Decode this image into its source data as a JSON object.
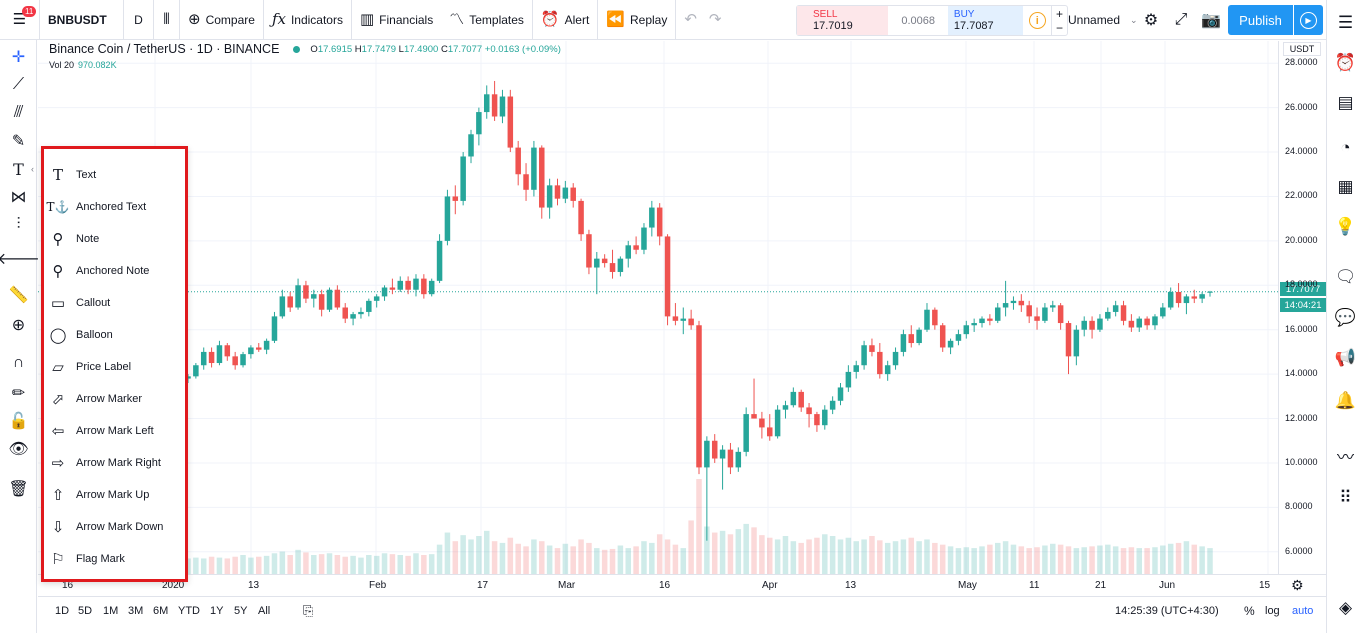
{
  "topbar": {
    "notification_count": "11",
    "symbol": "BNBUSDT",
    "interval": "D",
    "compare": "Compare",
    "indicators": "Indicators",
    "financials": "Financials",
    "templates": "Templates",
    "alert": "Alert",
    "replay": "Replay",
    "sell_label": "SELL",
    "sell_value": "17.7019",
    "spread": "0.0068",
    "buy_label": "BUY",
    "buy_value": "17.7087",
    "layout_name": "Unnamed",
    "publish": "Publish"
  },
  "legend": {
    "title": "Binance Coin / TetherUS · 1D · BINANCE",
    "o_label": "O",
    "o": "17.6915",
    "h_label": "H",
    "h": "17.7479",
    "l_label": "L",
    "l": "17.4900",
    "c_label": "C",
    "c": "17.7077",
    "change": "+0.0163 (+0.09%)",
    "vol_label": "Vol 20",
    "vol_value": "970.082K"
  },
  "price_scale": {
    "currency": "USDT",
    "ticks": [
      "28.0000",
      "26.0000",
      "24.0000",
      "22.0000",
      "20.0000",
      "18.0000",
      "16.0000",
      "14.0000",
      "12.0000",
      "10.0000",
      "8.0000",
      "6.0000"
    ],
    "last_price": "17.7077",
    "countdown": "14:04:21"
  },
  "time_scale": {
    "labels": [
      "16",
      "2020",
      "13",
      "Feb",
      "17",
      "Mar",
      "16",
      "Apr",
      "13",
      "May",
      "11",
      "21",
      "Jun",
      "15"
    ]
  },
  "bottombar": {
    "ranges": [
      "1D",
      "5D",
      "1M",
      "3M",
      "6M",
      "YTD",
      "1Y",
      "5Y",
      "All"
    ],
    "clock": "14:25:39 (UTC+4:30)",
    "percent": "%",
    "log": "log",
    "auto": "auto"
  },
  "annotation_menu": {
    "items": [
      {
        "label": "Text",
        "icon": "text-icon"
      },
      {
        "label": "Anchored Text",
        "icon": "anchored-text-icon"
      },
      {
        "label": "Note",
        "icon": "note-icon"
      },
      {
        "label": "Anchored Note",
        "icon": "anchored-note-icon"
      },
      {
        "label": "Callout",
        "icon": "callout-icon"
      },
      {
        "label": "Balloon",
        "icon": "balloon-icon"
      },
      {
        "label": "Price Label",
        "icon": "price-label-icon"
      },
      {
        "label": "Arrow Marker",
        "icon": "arrow-marker-icon"
      },
      {
        "label": "Arrow Mark Left",
        "icon": "arrow-left-icon"
      },
      {
        "label": "Arrow Mark Right",
        "icon": "arrow-right-icon"
      },
      {
        "label": "Arrow Mark Up",
        "icon": "arrow-up-icon"
      },
      {
        "label": "Arrow Mark Down",
        "icon": "arrow-down-icon"
      },
      {
        "label": "Flag Mark",
        "icon": "flag-icon"
      }
    ]
  },
  "colors": {
    "up": "#26a69a",
    "down": "#ef5350",
    "accent": "#2196f3",
    "highlight_border": "#e0191d"
  },
  "chart_data": {
    "type": "candlestick",
    "ylim": [
      5,
      29
    ],
    "price_line": 17.7077,
    "candles": [
      {
        "o": 13.8,
        "h": 14.0,
        "l": 13.6,
        "c": 13.9
      },
      {
        "o": 13.9,
        "h": 14.5,
        "l": 13.8,
        "c": 14.4
      },
      {
        "o": 14.4,
        "h": 15.2,
        "l": 14.2,
        "c": 15.0
      },
      {
        "o": 15.0,
        "h": 15.2,
        "l": 14.3,
        "c": 14.5
      },
      {
        "o": 14.5,
        "h": 15.5,
        "l": 14.4,
        "c": 15.3
      },
      {
        "o": 15.3,
        "h": 15.4,
        "l": 14.6,
        "c": 14.8
      },
      {
        "o": 14.8,
        "h": 15.0,
        "l": 14.2,
        "c": 14.4
      },
      {
        "o": 14.4,
        "h": 15.0,
        "l": 14.3,
        "c": 14.9
      },
      {
        "o": 14.9,
        "h": 15.3,
        "l": 14.7,
        "c": 15.2
      },
      {
        "o": 15.2,
        "h": 15.4,
        "l": 15.0,
        "c": 15.1
      },
      {
        "o": 15.1,
        "h": 15.6,
        "l": 14.9,
        "c": 15.5
      },
      {
        "o": 15.5,
        "h": 16.8,
        "l": 15.4,
        "c": 16.6
      },
      {
        "o": 16.6,
        "h": 17.8,
        "l": 16.5,
        "c": 17.5
      },
      {
        "o": 17.5,
        "h": 17.7,
        "l": 16.8,
        "c": 17.0
      },
      {
        "o": 17.0,
        "h": 18.3,
        "l": 16.9,
        "c": 18.0
      },
      {
        "o": 18.0,
        "h": 18.2,
        "l": 17.2,
        "c": 17.4
      },
      {
        "o": 17.4,
        "h": 17.8,
        "l": 17.0,
        "c": 17.6
      },
      {
        "o": 17.6,
        "h": 17.8,
        "l": 16.6,
        "c": 16.9
      },
      {
        "o": 16.9,
        "h": 17.9,
        "l": 16.8,
        "c": 17.8
      },
      {
        "o": 17.8,
        "h": 18.0,
        "l": 16.9,
        "c": 17.0
      },
      {
        "o": 17.0,
        "h": 17.2,
        "l": 16.3,
        "c": 16.5
      },
      {
        "o": 16.5,
        "h": 16.8,
        "l": 16.2,
        "c": 16.7
      },
      {
        "o": 16.7,
        "h": 17.0,
        "l": 16.5,
        "c": 16.8
      },
      {
        "o": 16.8,
        "h": 17.4,
        "l": 16.6,
        "c": 17.3
      },
      {
        "o": 17.3,
        "h": 17.6,
        "l": 17.0,
        "c": 17.5
      },
      {
        "o": 17.5,
        "h": 18.0,
        "l": 17.3,
        "c": 17.9
      },
      {
        "o": 17.9,
        "h": 18.3,
        "l": 17.6,
        "c": 17.8
      },
      {
        "o": 17.8,
        "h": 18.4,
        "l": 17.7,
        "c": 18.2
      },
      {
        "o": 18.2,
        "h": 18.4,
        "l": 17.6,
        "c": 17.8
      },
      {
        "o": 17.8,
        "h": 18.5,
        "l": 17.5,
        "c": 18.3
      },
      {
        "o": 18.3,
        "h": 18.5,
        "l": 17.4,
        "c": 17.6
      },
      {
        "o": 17.6,
        "h": 18.3,
        "l": 17.5,
        "c": 18.2
      },
      {
        "o": 18.2,
        "h": 20.3,
        "l": 18.1,
        "c": 20.0
      },
      {
        "o": 20.0,
        "h": 22.3,
        "l": 19.8,
        "c": 22.0
      },
      {
        "o": 22.0,
        "h": 22.5,
        "l": 21.2,
        "c": 21.8
      },
      {
        "o": 21.8,
        "h": 24.0,
        "l": 21.6,
        "c": 23.8
      },
      {
        "o": 23.8,
        "h": 25.0,
        "l": 23.5,
        "c": 24.8
      },
      {
        "o": 24.8,
        "h": 26.0,
        "l": 24.3,
        "c": 25.8
      },
      {
        "o": 25.8,
        "h": 27.0,
        "l": 25.5,
        "c": 26.6
      },
      {
        "o": 26.6,
        "h": 27.2,
        "l": 25.4,
        "c": 25.6
      },
      {
        "o": 25.6,
        "h": 26.8,
        "l": 25.3,
        "c": 26.5
      },
      {
        "o": 26.5,
        "h": 26.8,
        "l": 24.0,
        "c": 24.2
      },
      {
        "o": 24.2,
        "h": 24.5,
        "l": 22.5,
        "c": 23.0
      },
      {
        "o": 23.0,
        "h": 23.5,
        "l": 21.8,
        "c": 22.3
      },
      {
        "o": 22.3,
        "h": 24.5,
        "l": 22.0,
        "c": 24.2
      },
      {
        "o": 24.2,
        "h": 24.3,
        "l": 21.0,
        "c": 21.5
      },
      {
        "o": 21.5,
        "h": 22.8,
        "l": 21.0,
        "c": 22.5
      },
      {
        "o": 22.5,
        "h": 22.8,
        "l": 21.6,
        "c": 21.9
      },
      {
        "o": 21.9,
        "h": 22.7,
        "l": 21.7,
        "c": 22.4
      },
      {
        "o": 22.4,
        "h": 22.6,
        "l": 21.5,
        "c": 21.8
      },
      {
        "o": 21.8,
        "h": 21.9,
        "l": 20.0,
        "c": 20.3
      },
      {
        "o": 20.3,
        "h": 20.5,
        "l": 18.5,
        "c": 18.8
      },
      {
        "o": 18.8,
        "h": 19.5,
        "l": 17.6,
        "c": 19.2
      },
      {
        "o": 19.2,
        "h": 19.4,
        "l": 18.8,
        "c": 19.0
      },
      {
        "o": 19.0,
        "h": 19.6,
        "l": 18.3,
        "c": 18.6
      },
      {
        "o": 18.6,
        "h": 19.3,
        "l": 18.4,
        "c": 19.2
      },
      {
        "o": 19.2,
        "h": 20.0,
        "l": 18.8,
        "c": 19.8
      },
      {
        "o": 19.8,
        "h": 20.2,
        "l": 19.4,
        "c": 19.6
      },
      {
        "o": 19.6,
        "h": 20.8,
        "l": 19.4,
        "c": 20.6
      },
      {
        "o": 20.6,
        "h": 21.8,
        "l": 20.2,
        "c": 21.5
      },
      {
        "o": 21.5,
        "h": 21.7,
        "l": 19.8,
        "c": 20.2
      },
      {
        "o": 20.2,
        "h": 20.3,
        "l": 16.2,
        "c": 16.6
      },
      {
        "o": 16.6,
        "h": 17.2,
        "l": 16.2,
        "c": 16.4
      },
      {
        "o": 16.4,
        "h": 17.0,
        "l": 15.8,
        "c": 16.5
      },
      {
        "o": 16.5,
        "h": 16.9,
        "l": 16.0,
        "c": 16.2
      },
      {
        "o": 16.2,
        "h": 16.4,
        "l": 9.5,
        "c": 9.8
      },
      {
        "o": 9.8,
        "h": 11.2,
        "l": 6.5,
        "c": 11.0
      },
      {
        "o": 11.0,
        "h": 11.3,
        "l": 10.0,
        "c": 10.2
      },
      {
        "o": 10.2,
        "h": 10.8,
        "l": 8.8,
        "c": 10.6
      },
      {
        "o": 10.6,
        "h": 10.9,
        "l": 9.5,
        "c": 9.8
      },
      {
        "o": 9.8,
        "h": 10.7,
        "l": 9.6,
        "c": 10.5
      },
      {
        "o": 10.5,
        "h": 12.5,
        "l": 10.3,
        "c": 12.2
      },
      {
        "o": 12.2,
        "h": 13.8,
        "l": 12.0,
        "c": 12.0
      },
      {
        "o": 12.0,
        "h": 12.3,
        "l": 11.1,
        "c": 11.6
      },
      {
        "o": 11.6,
        "h": 12.2,
        "l": 11.0,
        "c": 11.2
      },
      {
        "o": 11.2,
        "h": 12.6,
        "l": 11.1,
        "c": 12.4
      },
      {
        "o": 12.4,
        "h": 12.8,
        "l": 12.0,
        "c": 12.6
      },
      {
        "o": 12.6,
        "h": 13.4,
        "l": 12.5,
        "c": 13.2
      },
      {
        "o": 13.2,
        "h": 13.3,
        "l": 12.3,
        "c": 12.5
      },
      {
        "o": 12.5,
        "h": 12.7,
        "l": 11.6,
        "c": 12.2
      },
      {
        "o": 12.2,
        "h": 12.3,
        "l": 11.4,
        "c": 11.7
      },
      {
        "o": 11.7,
        "h": 12.6,
        "l": 11.5,
        "c": 12.4
      },
      {
        "o": 12.4,
        "h": 13.0,
        "l": 12.2,
        "c": 12.8
      },
      {
        "o": 12.8,
        "h": 13.6,
        "l": 12.6,
        "c": 13.4
      },
      {
        "o": 13.4,
        "h": 14.4,
        "l": 13.2,
        "c": 14.1
      },
      {
        "o": 14.1,
        "h": 14.6,
        "l": 13.8,
        "c": 14.4
      },
      {
        "o": 14.4,
        "h": 15.5,
        "l": 14.2,
        "c": 15.3
      },
      {
        "o": 15.3,
        "h": 15.6,
        "l": 14.8,
        "c": 15.0
      },
      {
        "o": 15.0,
        "h": 15.4,
        "l": 13.8,
        "c": 14.0
      },
      {
        "o": 14.0,
        "h": 14.6,
        "l": 13.7,
        "c": 14.4
      },
      {
        "o": 14.4,
        "h": 15.2,
        "l": 14.2,
        "c": 15.0
      },
      {
        "o": 15.0,
        "h": 16.0,
        "l": 14.8,
        "c": 15.8
      },
      {
        "o": 15.8,
        "h": 16.2,
        "l": 15.2,
        "c": 15.4
      },
      {
        "o": 15.4,
        "h": 16.1,
        "l": 15.3,
        "c": 16.0
      },
      {
        "o": 16.0,
        "h": 17.2,
        "l": 15.9,
        "c": 16.9
      },
      {
        "o": 16.9,
        "h": 17.0,
        "l": 16.0,
        "c": 16.2
      },
      {
        "o": 16.2,
        "h": 16.3,
        "l": 15.0,
        "c": 15.2
      },
      {
        "o": 15.2,
        "h": 15.6,
        "l": 14.9,
        "c": 15.5
      },
      {
        "o": 15.5,
        "h": 16.0,
        "l": 15.3,
        "c": 15.8
      },
      {
        "o": 15.8,
        "h": 16.4,
        "l": 15.6,
        "c": 16.2
      },
      {
        "o": 16.2,
        "h": 16.5,
        "l": 15.9,
        "c": 16.3
      },
      {
        "o": 16.3,
        "h": 16.6,
        "l": 16.1,
        "c": 16.5
      },
      {
        "o": 16.5,
        "h": 16.7,
        "l": 16.2,
        "c": 16.4
      },
      {
        "o": 16.4,
        "h": 17.2,
        "l": 16.3,
        "c": 17.0
      },
      {
        "o": 17.0,
        "h": 18.2,
        "l": 16.6,
        "c": 17.2
      },
      {
        "o": 17.2,
        "h": 17.5,
        "l": 16.9,
        "c": 17.3
      },
      {
        "o": 17.3,
        "h": 17.6,
        "l": 16.8,
        "c": 17.1
      },
      {
        "o": 17.1,
        "h": 17.3,
        "l": 16.3,
        "c": 16.6
      },
      {
        "o": 16.6,
        "h": 17.0,
        "l": 16.0,
        "c": 16.4
      },
      {
        "o": 16.4,
        "h": 17.2,
        "l": 16.3,
        "c": 17.0
      },
      {
        "o": 17.0,
        "h": 17.3,
        "l": 16.8,
        "c": 17.1
      },
      {
        "o": 17.1,
        "h": 17.2,
        "l": 16.0,
        "c": 16.3
      },
      {
        "o": 16.3,
        "h": 16.4,
        "l": 14.0,
        "c": 14.8
      },
      {
        "o": 14.8,
        "h": 16.2,
        "l": 14.4,
        "c": 16.0
      },
      {
        "o": 16.0,
        "h": 16.6,
        "l": 15.7,
        "c": 16.4
      },
      {
        "o": 16.4,
        "h": 16.6,
        "l": 15.6,
        "c": 16.0
      },
      {
        "o": 16.0,
        "h": 16.7,
        "l": 15.9,
        "c": 16.5
      },
      {
        "o": 16.5,
        "h": 17.0,
        "l": 16.4,
        "c": 16.8
      },
      {
        "o": 16.8,
        "h": 17.3,
        "l": 16.6,
        "c": 17.1
      },
      {
        "o": 17.1,
        "h": 17.3,
        "l": 16.2,
        "c": 16.4
      },
      {
        "o": 16.4,
        "h": 16.7,
        "l": 15.9,
        "c": 16.1
      },
      {
        "o": 16.1,
        "h": 16.6,
        "l": 15.9,
        "c": 16.5
      },
      {
        "o": 16.5,
        "h": 16.6,
        "l": 16.0,
        "c": 16.2
      },
      {
        "o": 16.2,
        "h": 16.7,
        "l": 16.0,
        "c": 16.6
      },
      {
        "o": 16.6,
        "h": 17.2,
        "l": 16.5,
        "c": 17.0
      },
      {
        "o": 17.0,
        "h": 17.9,
        "l": 16.9,
        "c": 17.7
      },
      {
        "o": 17.7,
        "h": 18.1,
        "l": 17.0,
        "c": 17.2
      },
      {
        "o": 17.2,
        "h": 17.6,
        "l": 16.7,
        "c": 17.5
      },
      {
        "o": 17.5,
        "h": 17.8,
        "l": 17.2,
        "c": 17.4
      },
      {
        "o": 17.4,
        "h": 17.7,
        "l": 17.2,
        "c": 17.6
      },
      {
        "o": 17.69,
        "h": 17.75,
        "l": 17.49,
        "c": 17.71
      }
    ],
    "volume": [
      18,
      19,
      18,
      20,
      19,
      18,
      20,
      22,
      19,
      20,
      21,
      24,
      26,
      22,
      28,
      25,
      22,
      23,
      24,
      22,
      20,
      21,
      19,
      22,
      21,
      24,
      23,
      22,
      21,
      24,
      22,
      23,
      34,
      48,
      38,
      45,
      40,
      44,
      50,
      38,
      36,
      42,
      35,
      32,
      40,
      38,
      33,
      30,
      35,
      32,
      40,
      36,
      30,
      28,
      29,
      33,
      30,
      32,
      38,
      36,
      46,
      40,
      34,
      30,
      62,
      110,
      55,
      48,
      50,
      46,
      52,
      58,
      54,
      45,
      42,
      40,
      44,
      38,
      36,
      40,
      42,
      46,
      44,
      40,
      42,
      38,
      40,
      44,
      39,
      36,
      38,
      40,
      42,
      38,
      40,
      36,
      34,
      32,
      30,
      31,
      30,
      32,
      34,
      36,
      38,
      34,
      32,
      30,
      31,
      33,
      35,
      34,
      32,
      30,
      31,
      32,
      33,
      34,
      32,
      30,
      31,
      30,
      30,
      31,
      33,
      35,
      36,
      38,
      34,
      32,
      30,
      30,
      26,
      18
    ]
  }
}
